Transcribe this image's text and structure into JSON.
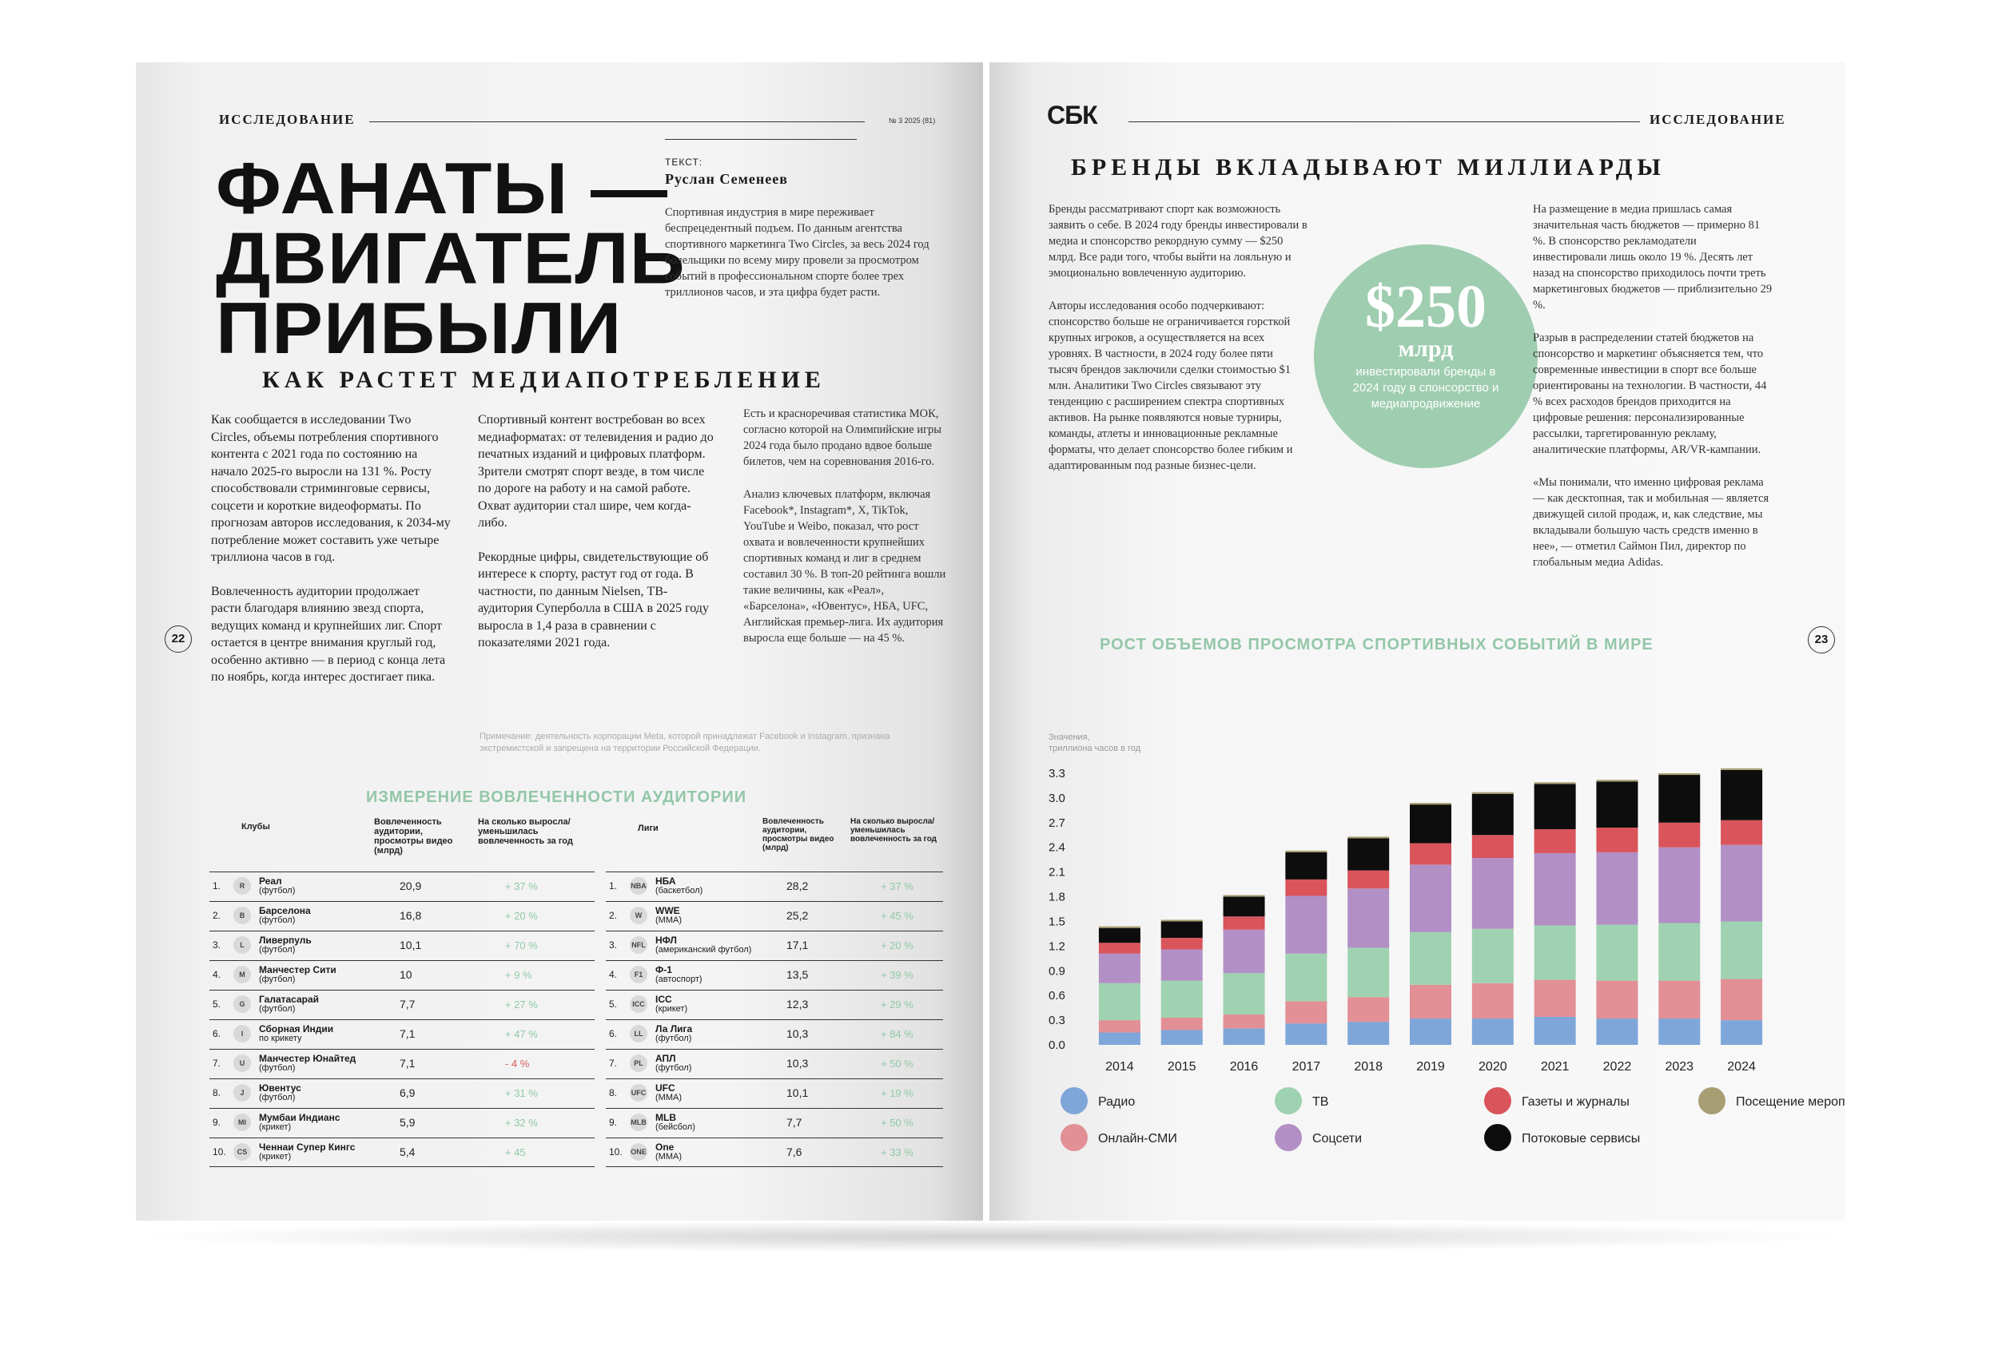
{
  "left_page": {
    "rubric": "ИССЛЕДОВАНИЕ",
    "issue": "№ 3 2025 (81)",
    "title_lines": [
      "ФАНАТЫ —",
      "ДВИГАТЕЛЬ",
      "ПРИБЫЛИ"
    ],
    "author_label": "ТЕКСТ:",
    "author": "Руслан Семенеев",
    "lead": "Спортивная индустрия в мире переживает беспрецедентный подъем. По данным агентства спортивного маркетинга Two Circles, за весь 2024 год болельщики по всему миру провели за просмотром событий в профессиональном спорте более трех триллионов часов, и эта цифра будет расти.",
    "section_title": "КАК РАСТЕТ МЕДИАПОТРЕБЛЕНИЕ",
    "col1": [
      "Как сообщается в исследовании Two Circles, объемы потребления спортивного контента с 2021 года по состоянию на начало 2025-го выросли на 131 %. Росту способствовали стриминговые сервисы, соцсети и короткие видеоформаты. По прогнозам авторов исследования, к 2034-му потребление может составить уже четыре триллиона часов в год.",
      "Вовлеченность аудитории продолжает расти благодаря влиянию звезд спорта, ведущих команд и крупнейших лиг. Спорт остается в центре внимания круглый год, особенно активно — в период с конца лета по ноябрь, когда интерес достигает пика."
    ],
    "col2": [
      "Спортивный контент востребован во всех медиаформатах: от телевидения и радио до печатных изданий и цифровых платформ. Зрители смотрят спорт везде, в том числе по дороге на работу и на самой работе. Охват аудитории стал шире, чем когда-либо.",
      "Рекордные цифры, свидетельствующие об интересе к спорту, растут год от года. В частности, по данным Nielsen, ТВ-аудитория Суперболла в США в 2025 году выросла в 1,4 раза в сравнении с показателями 2021 года."
    ],
    "col3": [
      "Есть и красноречивая статистика МОК, согласно которой на Олимпийские игры 2024 года было продано вдвое больше билетов, чем на соревнования 2016-го.",
      "Анализ ключевых платформ, включая Facebook*, Instagram*, X, TikTok, YouTube и Weibo, показал, что рост охвата и вовлеченности крупнейших спортивных команд и лиг в среднем составил 30 %. В топ-20 рейтинга вошли такие величины, как «Реал», «Барселона», «Ювентус», НБА, UFC, Английская премьер-лига. Их аудитория выросла еще больше — на 45 %."
    ],
    "note": "Примечание: деятельность корпорации Meta, которой принадлежат Facebook и Instagram, признана экстремистской и запрещена на территории Российской Федерации.",
    "page_number": "22",
    "table_title": "ИЗМЕРЕНИЕ ВОВЛЕЧЕННОСТИ АУДИТОРИИ",
    "clubs": {
      "headers": [
        "Клубы",
        "Вовлеченность аудитории, просмотры видео (млрд)",
        "На сколько выросла/уменьшилась вовлеченность за год"
      ],
      "rows": [
        {
          "rank": "1.",
          "logo": "R",
          "name": "Реал",
          "sub": "(футбол)",
          "value": "20,9",
          "change": "+ 37 %"
        },
        {
          "rank": "2.",
          "logo": "B",
          "name": "Барселона",
          "sub": "(футбол)",
          "value": "16,8",
          "change": "+ 20 %"
        },
        {
          "rank": "3.",
          "logo": "L",
          "name": "Ливерпуль",
          "sub": "(футбол)",
          "value": "10,1",
          "change": "+ 70 %"
        },
        {
          "rank": "4.",
          "logo": "M",
          "name": "Манчестер Сити",
          "sub": "(футбол)",
          "value": "10",
          "change": "+ 9 %"
        },
        {
          "rank": "5.",
          "logo": "G",
          "name": "Галатасарай",
          "sub": "(футбол)",
          "value": "7,7",
          "change": "+ 27 %"
        },
        {
          "rank": "6.",
          "logo": "I",
          "name": "Сборная Индии",
          "sub": "по крикету",
          "value": "7,1",
          "change": "+ 47 %"
        },
        {
          "rank": "7.",
          "logo": "U",
          "name": "Манчестер Юнайтед",
          "sub": "(футбол)",
          "value": "7,1",
          "change": "- 4 %"
        },
        {
          "rank": "8.",
          "logo": "J",
          "name": "Ювентус",
          "sub": "(футбол)",
          "value": "6,9",
          "change": "+ 31 %"
        },
        {
          "rank": "9.",
          "logo": "MI",
          "name": "Мумбаи Индианс",
          "sub": "(крикет)",
          "value": "5,9",
          "change": "+ 32 %"
        },
        {
          "rank": "10.",
          "logo": "CS",
          "name": "Ченнаи Супер Кингс",
          "sub": "(крикет)",
          "value": "5,4",
          "change": "+ 45"
        }
      ]
    },
    "leagues": {
      "headers": [
        "Лиги",
        "Вовлеченность аудитории, просмотры видео (млрд)",
        "На сколько выросла/уменьшилась вовлеченность за год"
      ],
      "rows": [
        {
          "rank": "1.",
          "logo": "NBA",
          "name": "НБА",
          "sub": "(баскетбол)",
          "value": "28,2",
          "change": "+ 37 %"
        },
        {
          "rank": "2.",
          "logo": "W",
          "name": "WWE",
          "sub": "(ММА)",
          "value": "25,2",
          "change": "+ 45 %"
        },
        {
          "rank": "3.",
          "logo": "NFL",
          "name": "НФЛ",
          "sub": "(американский футбол)",
          "value": "17,1",
          "change": "+ 20 %"
        },
        {
          "rank": "4.",
          "logo": "F1",
          "name": "Ф-1",
          "sub": "(автоспорт)",
          "value": "13,5",
          "change": "+ 39 %"
        },
        {
          "rank": "5.",
          "logo": "ICC",
          "name": "ICC",
          "sub": "(крикет)",
          "value": "12,3",
          "change": "+ 29 %"
        },
        {
          "rank": "6.",
          "logo": "LL",
          "name": "Ла Лига",
          "sub": "(футбол)",
          "value": "10,3",
          "change": "+ 84 %"
        },
        {
          "rank": "7.",
          "logo": "PL",
          "name": "АПЛ",
          "sub": "(футбол)",
          "value": "10,3",
          "change": "+ 50 %"
        },
        {
          "rank": "8.",
          "logo": "UFC",
          "name": "UFC",
          "sub": "(ММА)",
          "value": "10,1",
          "change": "+ 19 %"
        },
        {
          "rank": "9.",
          "logo": "MLB",
          "name": "MLB",
          "sub": "(бейсбол)",
          "value": "7,7",
          "change": "+ 50 %"
        },
        {
          "rank": "10.",
          "logo": "ONE",
          "name": "One",
          "sub": "(ММА)",
          "value": "7,6",
          "change": "+ 33 %"
        }
      ]
    }
  },
  "right_page": {
    "logo": "СБК",
    "rubric": "ИССЛЕДОВАНИЕ",
    "section_title": "БРЕНДЫ ВКЛАДЫВАЮТ МИЛЛИАРДЫ",
    "col1": [
      "Бренды рассматривают спорт как возможность заявить о себе. В 2024 году бренды инвестировали в медиа и спонсорство рекордную сумму — $250 млрд. Все ради того, чтобы выйти на лояльную и эмоционально вовлеченную аудиторию.",
      "Авторы исследования особо подчеркивают: спонсорство больше не ограничивается горсткой крупных игроков, а осуществляется на всех уровнях. В частности, в 2024 году более пяти тысяч брендов заключили сделки стоимостью $1 млн. Аналитики Two Circles связывают эту тенденцию с расширением спектра спортивных активов. На рынке появляются новые турниры, команды, атлеты и инновационные рекламные форматы, что делает спонсорство более гибким и адаптированным под разные бизнес-цели."
    ],
    "col2": [
      "На размещение в медиа пришлась самая значительная часть бюджетов — примерно 81 %. В спонсорство рекламодатели инвестировали лишь около 19 %. Десять лет назад на спонсорство приходилось почти треть маркетинговых бюджетов — приблизительно 29 %.",
      "Разрыв в распределении статей бюджетов на спонсорство и маркетинг объясняется тем, что современные инвестиции в спорт все больше ориентированы на технологии. В частности, 44 % всех расходов брендов приходится на цифровые решения: персонализированные рассылки, таргетированную рекламу, аналитические платформы, AR/VR-кампании.",
      "«Мы понимали, что именно цифровая реклама — как десктопная, так и мобильная — является движущей силой продаж, и, как следствие, мы вкладывали большую часть средств именно в нее», — отметил Саймон Пил, директор по глобальным медиа Adidas."
    ],
    "circle": {
      "big": "$250",
      "mid": "млрд",
      "small": "инвестировали бренды в 2024 году в спонсорство и медиапродвижение"
    },
    "page_number": "23"
  },
  "chart_data": {
    "type": "bar",
    "stacked": true,
    "title": "РОСТ ОБЪЕМОВ ПРОСМОТРА СПОРТИВНЫХ СОБЫТИЙ В МИРЕ",
    "ylabel": "Значения, триллиона часов в год",
    "xlabel": "",
    "ylim": [
      0,
      3.3
    ],
    "yticks": [
      "0.0",
      "0.3",
      "0.6",
      "0.9",
      "1.2",
      "1.5",
      "1.8",
      "2.1",
      "2.4",
      "2.7",
      "3.0",
      "3.3"
    ],
    "categories": [
      "2014",
      "2015",
      "2016",
      "2017",
      "2018",
      "2019",
      "2020",
      "2021",
      "2022",
      "2023",
      "2024"
    ],
    "series": [
      {
        "name": "Радио",
        "color": "#7ea6d9",
        "values": [
          0.15,
          0.18,
          0.2,
          0.26,
          0.28,
          0.32,
          0.32,
          0.34,
          0.32,
          0.32,
          0.3
        ]
      },
      {
        "name": "Онлайн-СМИ",
        "color": "#e28f96",
        "values": [
          0.15,
          0.15,
          0.17,
          0.27,
          0.3,
          0.41,
          0.43,
          0.45,
          0.46,
          0.46,
          0.5
        ]
      },
      {
        "name": "ТВ",
        "color": "#9fd2b1",
        "values": [
          0.45,
          0.45,
          0.5,
          0.58,
          0.6,
          0.64,
          0.66,
          0.66,
          0.68,
          0.7,
          0.7
        ]
      },
      {
        "name": "Соцсети",
        "color": "#b28fc4",
        "values": [
          0.36,
          0.38,
          0.53,
          0.7,
          0.72,
          0.82,
          0.86,
          0.88,
          0.88,
          0.92,
          0.93
        ]
      },
      {
        "name": "Газеты и журналы",
        "color": "#d9545b",
        "values": [
          0.13,
          0.14,
          0.16,
          0.2,
          0.22,
          0.26,
          0.28,
          0.29,
          0.3,
          0.3,
          0.3
        ]
      },
      {
        "name": "Потоковые сервисы",
        "color": "#0d0d0d",
        "values": [
          0.18,
          0.2,
          0.24,
          0.33,
          0.39,
          0.47,
          0.5,
          0.55,
          0.56,
          0.58,
          0.61
        ]
      },
      {
        "name": "Посещение мероприятий",
        "color": "#a79e73",
        "values": [
          0.02,
          0.02,
          0.02,
          0.02,
          0.02,
          0.02,
          0.02,
          0.02,
          0.02,
          0.02,
          0.02
        ]
      }
    ],
    "legend": [
      "Радио",
      "ТВ",
      "Газеты и журналы",
      "Посещение мероприятий",
      "Онлайн-СМИ",
      "Соцсети",
      "Потоковые сервисы"
    ],
    "legend_position": "bottom"
  }
}
